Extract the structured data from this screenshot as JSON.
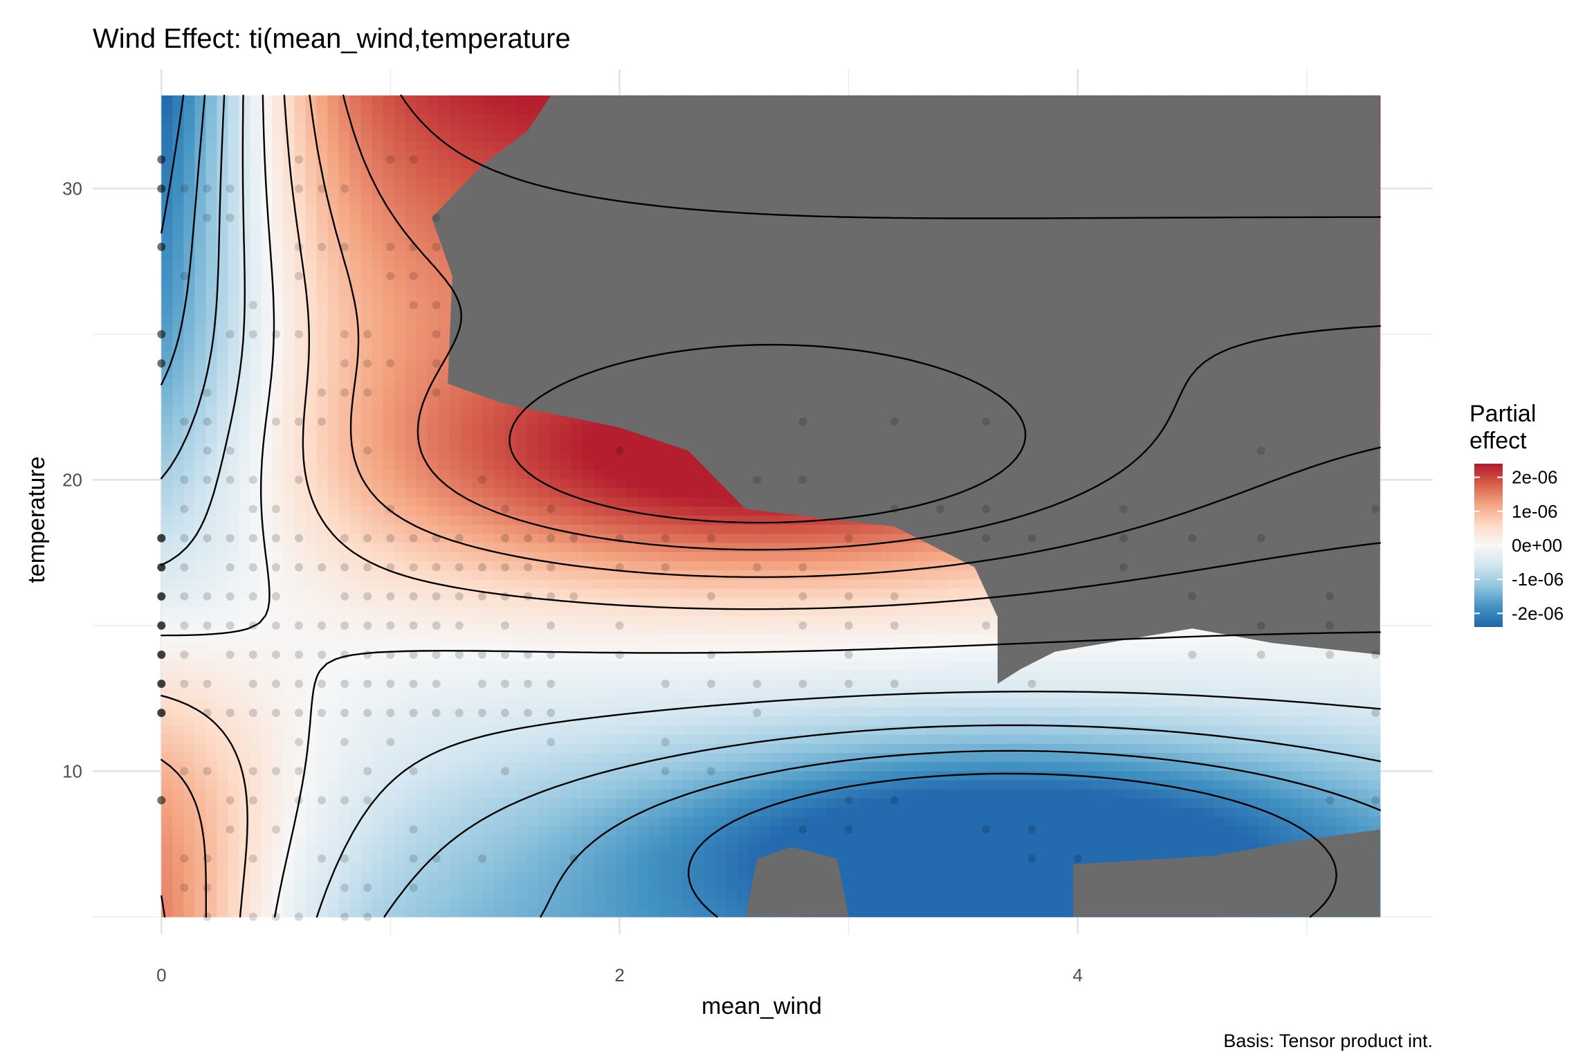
{
  "chart_data": {
    "type": "heatmap",
    "title": "Wind Effect: ti(mean_wind,temperature",
    "xlabel": "mean_wind",
    "ylabel": "temperature",
    "caption": "Basis: Tensor product int.",
    "xlim": [
      -0.3,
      5.55
    ],
    "ylim": [
      4.4,
      34.1
    ],
    "x_data_range": [
      0,
      5.32
    ],
    "y_data_range": [
      5,
      33.2
    ],
    "x_ticks": [
      0,
      2,
      4
    ],
    "x_tick_labels": [
      "0",
      "2",
      "4"
    ],
    "y_ticks": [
      10,
      20,
      30
    ],
    "y_tick_labels": [
      "10",
      "20",
      "30"
    ],
    "x_minor_ticks": [
      1,
      3,
      5
    ],
    "y_minor_ticks": [
      5,
      15,
      25
    ],
    "grid": true,
    "na_color": "#6b6b6b",
    "legend": {
      "title_line1": "Partial",
      "title_line2": "effect",
      "position": "right",
      "scale_min": -2.4e-06,
      "scale_max": 2.4e-06,
      "breaks": [
        2e-06,
        1e-06,
        0,
        -1e-06,
        -2e-06
      ],
      "labels": [
        "2e-06",
        "1e-06",
        "0e+00",
        "-1e-06",
        "-2e-06"
      ],
      "palette": [
        "#2166ac",
        "#4393c3",
        "#92c5de",
        "#d1e5f0",
        "#f7f7f7",
        "#fddbc7",
        "#f4a582",
        "#d6604d",
        "#b2182b"
      ]
    },
    "contour_levels": [
      -2e-06,
      -1.5e-06,
      -1e-06,
      -5e-07,
      0,
      5e-07,
      1e-06,
      1.5e-06,
      2e-06
    ],
    "missing_regions": [
      [
        [
          1.7,
          33.2
        ],
        [
          5.32,
          33.2
        ],
        [
          5.32,
          14.0
        ],
        [
          4.85,
          14.4
        ],
        [
          4.5,
          14.9
        ],
        [
          3.9,
          14.1
        ],
        [
          3.75,
          13.5
        ],
        [
          3.65,
          13.0
        ],
        [
          3.65,
          15.3
        ],
        [
          3.55,
          17.0
        ],
        [
          3.2,
          18.4
        ],
        [
          2.55,
          19.0
        ],
        [
          2.3,
          21.0
        ],
        [
          2.0,
          21.8
        ],
        [
          1.5,
          22.6
        ],
        [
          1.25,
          23.3
        ],
        [
          1.27,
          27.0
        ],
        [
          1.18,
          29.0
        ],
        [
          1.4,
          30.8
        ],
        [
          1.6,
          32.0
        ]
      ],
      [
        [
          2.55,
          5.0
        ],
        [
          2.6,
          7.0
        ],
        [
          2.75,
          7.4
        ],
        [
          2.95,
          7.0
        ],
        [
          3.0,
          5.0
        ]
      ],
      [
        [
          3.98,
          5.0
        ],
        [
          3.98,
          6.8
        ],
        [
          4.6,
          7.1
        ],
        [
          4.95,
          7.6
        ],
        [
          5.32,
          8.0
        ],
        [
          5.32,
          5.0
        ]
      ]
    ],
    "points": {
      "x_values": [
        0,
        0.1,
        0.2,
        0.3,
        0.4,
        0.5,
        0.6,
        0.7,
        0.8,
        0.9,
        1.0,
        1.1,
        1.2,
        1.3,
        1.4,
        1.5,
        1.6,
        1.7,
        1.8,
        2.0,
        2.2,
        2.4,
        2.6,
        2.8,
        3.0,
        3.2,
        3.4,
        3.6,
        3.8,
        4.0,
        4.2,
        4.5,
        4.8,
        5.1,
        5.3
      ],
      "dense_temperatures": [
        12,
        13,
        14,
        15,
        16,
        17,
        18
      ]
    }
  }
}
